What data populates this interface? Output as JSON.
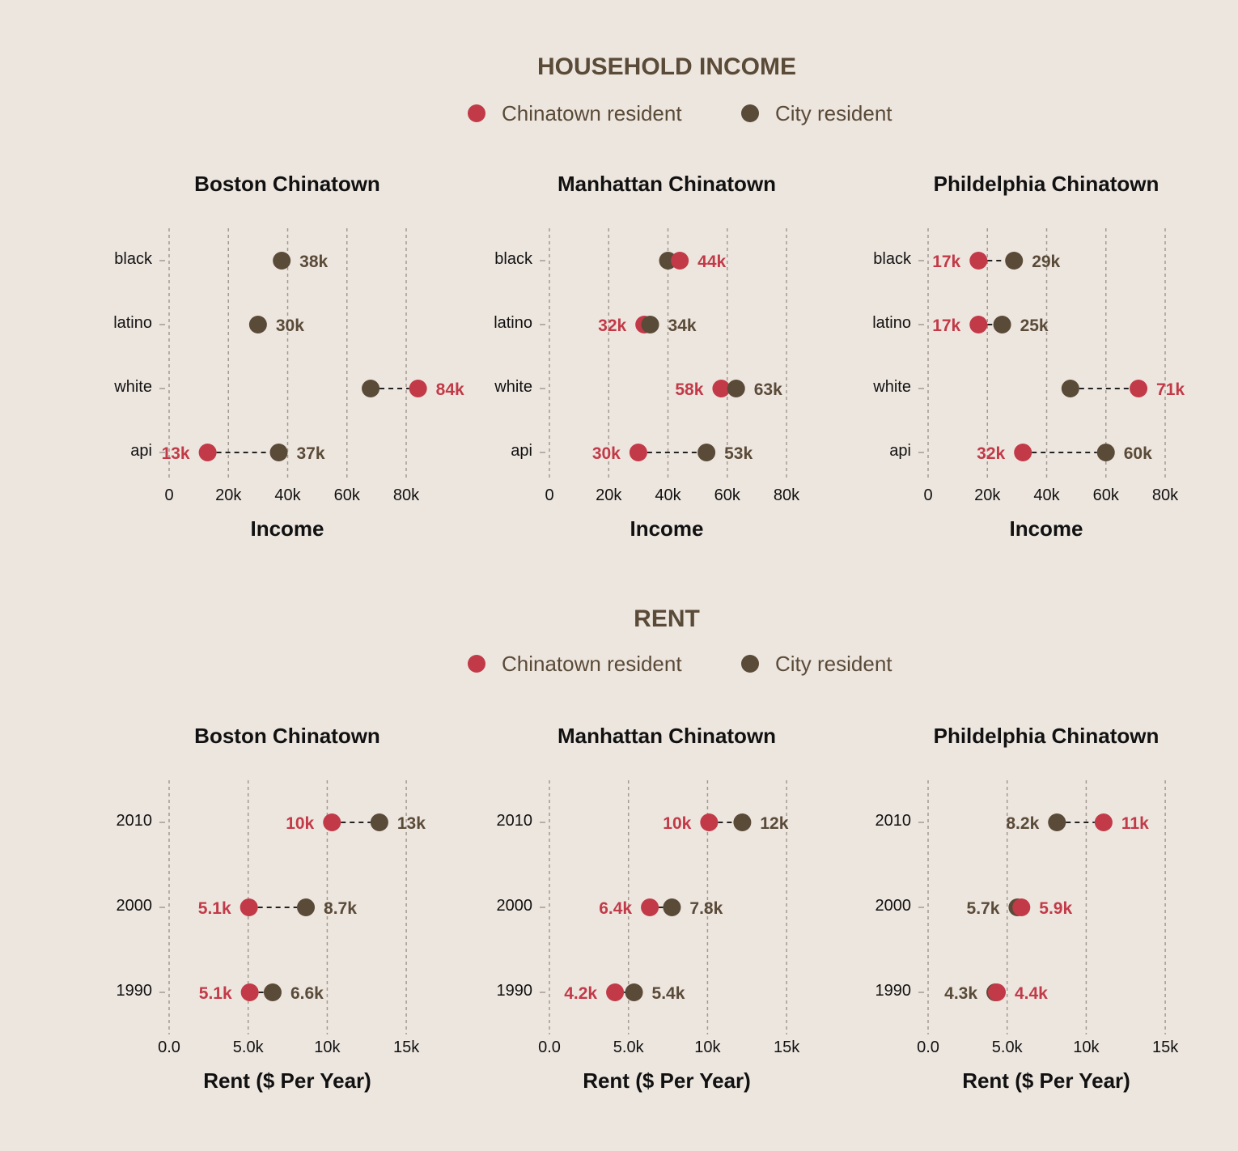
{
  "colors": {
    "background": "#ede6df",
    "chinatown": "#c23a48",
    "city": "#5a4a38",
    "title": "#5a4a38",
    "grid": "#a39a92"
  },
  "chart_data": [
    {
      "type": "dumbbell",
      "title": "HOUSEHOLD INCOME",
      "legend": {
        "placement": "top-center",
        "chinatown_label": "Chinatown resident",
        "city_label": "City resident"
      },
      "panels": [
        {
          "title": "Boston Chinatown",
          "xlabel": "Income",
          "xlim": [
            0,
            80000
          ],
          "xticks": [
            0,
            20000,
            40000,
            60000,
            80000
          ],
          "xtick_labels": [
            "0",
            "20k",
            "40k",
            "60k",
            "80k"
          ],
          "grid": true,
          "rows": [
            {
              "category": "black",
              "chinatown": null,
              "chinatown_label": "",
              "city": 38000,
              "city_label": "38k"
            },
            {
              "category": "latino",
              "chinatown": null,
              "chinatown_label": "",
              "city": 30000,
              "city_label": "30k"
            },
            {
              "category": "white",
              "chinatown": 84000,
              "chinatown_label": "84k",
              "city": 68000,
              "city_label": ""
            },
            {
              "category": "api",
              "chinatown": 13000,
              "chinatown_label": "13k",
              "city": 37000,
              "city_label": "37k"
            }
          ]
        },
        {
          "title": "Manhattan Chinatown",
          "xlabel": "Income",
          "xlim": [
            0,
            80000
          ],
          "xticks": [
            0,
            20000,
            40000,
            60000,
            80000
          ],
          "xtick_labels": [
            "0",
            "20k",
            "40k",
            "60k",
            "80k"
          ],
          "grid": true,
          "rows": [
            {
              "category": "black",
              "chinatown": 44000,
              "chinatown_label": "44k",
              "city": 40000,
              "city_label": ""
            },
            {
              "category": "latino",
              "chinatown": 32000,
              "chinatown_label": "32k",
              "city": 34000,
              "city_label": "34k"
            },
            {
              "category": "white",
              "chinatown": 58000,
              "chinatown_label": "58k",
              "city": 63000,
              "city_label": "63k"
            },
            {
              "category": "api",
              "chinatown": 30000,
              "chinatown_label": "30k",
              "city": 53000,
              "city_label": "53k"
            }
          ]
        },
        {
          "title": "Phildelphia Chinatown",
          "xlabel": "Income",
          "xlim": [
            0,
            80000
          ],
          "xticks": [
            0,
            20000,
            40000,
            60000,
            80000
          ],
          "xtick_labels": [
            "0",
            "20k",
            "40k",
            "60k",
            "80k"
          ],
          "grid": true,
          "rows": [
            {
              "category": "black",
              "chinatown": 17000,
              "chinatown_label": "17k",
              "city": 29000,
              "city_label": "29k"
            },
            {
              "category": "latino",
              "chinatown": 17000,
              "chinatown_label": "17k",
              "city": 25000,
              "city_label": "25k"
            },
            {
              "category": "white",
              "chinatown": 71000,
              "chinatown_label": "71k",
              "city": 48000,
              "city_label": ""
            },
            {
              "category": "api",
              "chinatown": 32000,
              "chinatown_label": "32k",
              "city": 60000,
              "city_label": "60k"
            }
          ]
        }
      ]
    },
    {
      "type": "dumbbell",
      "title": "RENT",
      "legend": {
        "placement": "top-center",
        "chinatown_label": "Chinatown resident",
        "city_label": "City resident"
      },
      "panels": [
        {
          "title": "Boston Chinatown",
          "xlabel": "Rent ($ Per Year)",
          "xlim": [
            0,
            15000
          ],
          "xticks": [
            0,
            5000,
            10000,
            15000
          ],
          "xtick_labels": [
            "0.0",
            "5.0k",
            "10k",
            "15k"
          ],
          "grid": true,
          "rows": [
            {
              "category": "2010",
              "chinatown": 10300,
              "chinatown_label": "10k",
              "city": 13300,
              "city_label": "13k"
            },
            {
              "category": "2000",
              "chinatown": 5050,
              "chinatown_label": "5.1k",
              "city": 8650,
              "city_label": "8.7k"
            },
            {
              "category": "1990",
              "chinatown": 5100,
              "chinatown_label": "5.1k",
              "city": 6550,
              "city_label": "6.6k"
            }
          ]
        },
        {
          "title": "Manhattan Chinatown",
          "xlabel": "Rent ($ Per Year)",
          "xlim": [
            0,
            15000
          ],
          "xticks": [
            0,
            5000,
            10000,
            15000
          ],
          "xtick_labels": [
            "0.0",
            "5.0k",
            "10k",
            "15k"
          ],
          "grid": true,
          "rows": [
            {
              "category": "2010",
              "chinatown": 10100,
              "chinatown_label": "10k",
              "city": 12200,
              "city_label": "12k"
            },
            {
              "category": "2000",
              "chinatown": 6350,
              "chinatown_label": "6.4k",
              "city": 7750,
              "city_label": "7.8k"
            },
            {
              "category": "1990",
              "chinatown": 4150,
              "chinatown_label": "4.2k",
              "city": 5350,
              "city_label": "5.4k"
            }
          ]
        },
        {
          "title": "Phildelphia Chinatown",
          "xlabel": "Rent ($ Per Year)",
          "xlim": [
            0,
            15000
          ],
          "xticks": [
            0,
            5000,
            10000,
            15000
          ],
          "xtick_labels": [
            "0.0",
            "5.0k",
            "10k",
            "15k"
          ],
          "grid": true,
          "rows": [
            {
              "category": "2010",
              "chinatown": 11100,
              "chinatown_label": "11k",
              "city": 8150,
              "city_label": "8.2k"
            },
            {
              "category": "2000",
              "chinatown": 5900,
              "chinatown_label": "5.9k",
              "city": 5650,
              "city_label": "5.7k"
            },
            {
              "category": "1990",
              "chinatown": 4350,
              "chinatown_label": "4.4k",
              "city": 4250,
              "city_label": "4.3k"
            }
          ]
        }
      ]
    }
  ]
}
